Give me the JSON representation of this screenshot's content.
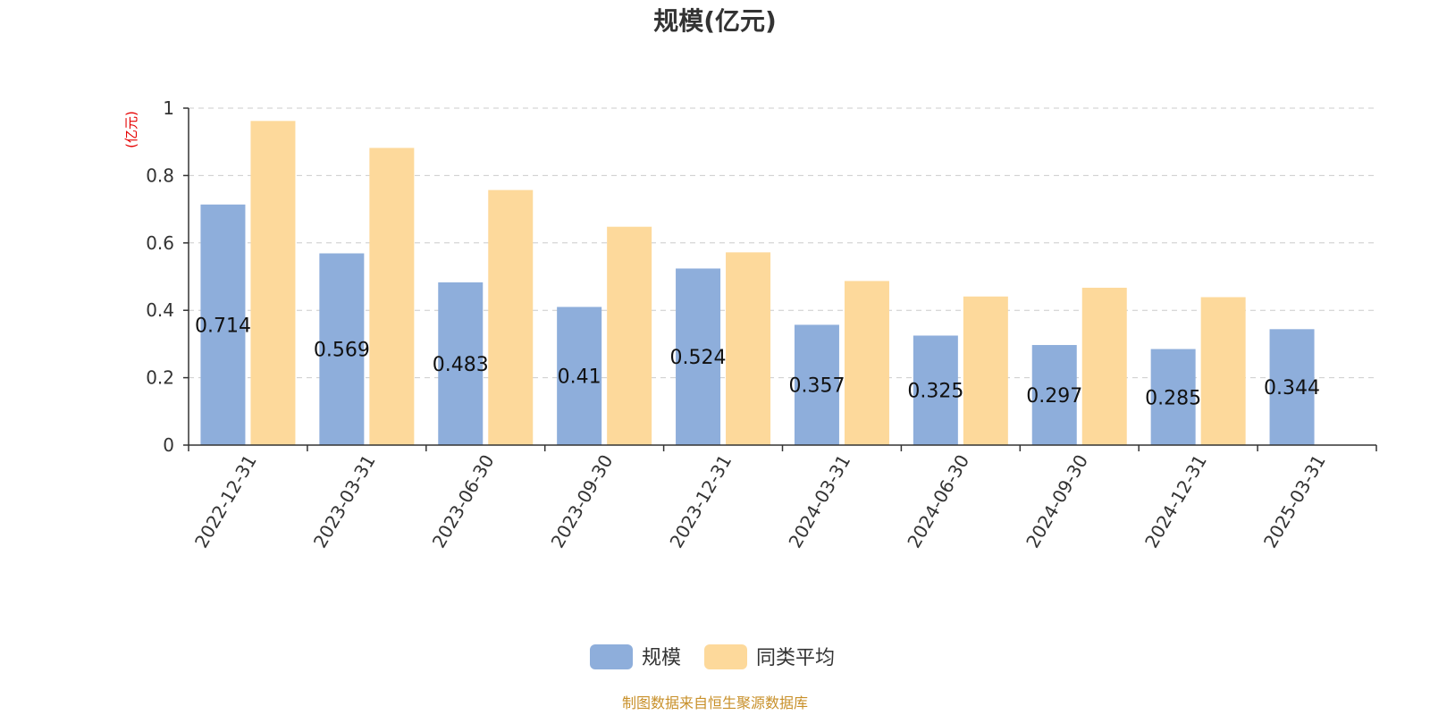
{
  "chart_data": {
    "type": "bar",
    "title": "规模(亿元)",
    "ylabel": "(亿元)",
    "categories": [
      "2022-12-31",
      "2023-03-31",
      "2023-06-30",
      "2023-09-30",
      "2023-12-31",
      "2024-03-31",
      "2024-06-30",
      "2024-09-30",
      "2024-12-31",
      "2025-03-31"
    ],
    "series": [
      {
        "name": "规模",
        "color": "#8eaedb",
        "values": [
          0.714,
          0.569,
          0.483,
          0.41,
          0.524,
          0.357,
          0.325,
          0.297,
          0.285,
          0.344
        ],
        "labels": [
          "0.714",
          "0.569",
          "0.483",
          "0.41",
          "0.524",
          "0.357",
          "0.325",
          "0.297",
          "0.285",
          "0.344"
        ]
      },
      {
        "name": "同类平均",
        "color": "#fdd99b",
        "values": [
          0.962,
          0.882,
          0.757,
          0.648,
          0.572,
          0.487,
          0.441,
          0.467,
          0.439,
          null
        ]
      }
    ],
    "ylim": [
      0,
      1
    ],
    "yticks": [
      "0",
      "0.2",
      "0.4",
      "0.6",
      "0.8",
      "1"
    ],
    "ytick_values": [
      0,
      0.2,
      0.4,
      0.6,
      0.8,
      1
    ],
    "grid": true,
    "legend": "bottom-center"
  },
  "footer": {
    "source": "制图数据来自恒生聚源数据库"
  }
}
